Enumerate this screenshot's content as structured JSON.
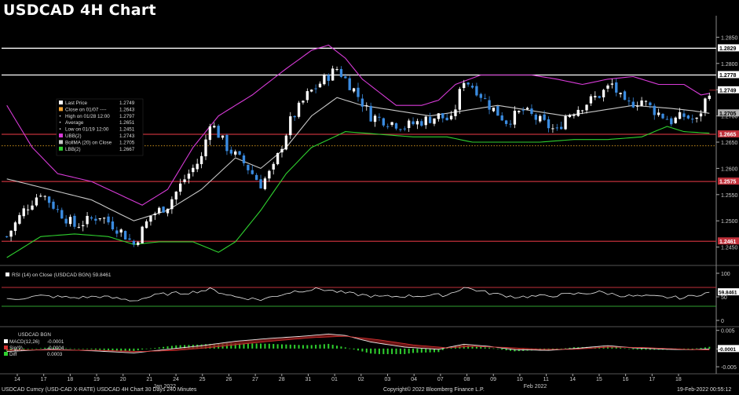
{
  "title": "USDCAD 4H Chart",
  "footer": {
    "left": "USDCAD Curncy (USD-CAD X-RATE) USDCAD 4H Chart 30 Days 240 Minutes",
    "center": "Copyright© 2022 Bloomberg Finance L.P.",
    "right": "19-Feb-2022 00:55:12"
  },
  "colors": {
    "background": "#000000",
    "candle_up": "#ffffff",
    "candle_down": "#3a8be0",
    "ubb": "#d83bd8",
    "lbb": "#2fd12f",
    "bollma": "#c8c8c8",
    "resistance_white": "#ffffff",
    "support_red": "#c0303a",
    "close_dotted": "#e0a020"
  },
  "legend": [
    {
      "label": "Last Price",
      "value": "1.2749",
      "swatch": "#ffffff"
    },
    {
      "label": "Close on 01/07  ----",
      "value": "1.2643",
      "swatch": "#f0a030"
    },
    {
      "label": "High on 01/28 12:00",
      "value": "1.2797",
      "swatch": "none"
    },
    {
      "label": "Average",
      "value": "1.2651",
      "swatch": "none"
    },
    {
      "label": "Low on 01/19 12:00",
      "value": "1.2451",
      "swatch": "none"
    },
    {
      "label": "UBB(2)",
      "value": "1.2743",
      "swatch": "#d83bd8"
    },
    {
      "label": "BollMA (20)  on Close",
      "value": "1.2705",
      "swatch": "#c8c8c8"
    },
    {
      "label": "LBB(2)",
      "value": "1.2667",
      "swatch": "#2fd12f"
    }
  ],
  "chart_data": [
    {
      "type": "candlestick",
      "title": "USDCAD 4H Chart",
      "ylim": [
        1.2418,
        1.2885
      ],
      "y_ticks": [
        "1.2850",
        "1.2800",
        "1.2750",
        "1.2700",
        "1.2650",
        "1.2600",
        "1.2550",
        "1.2500",
        "1.2450"
      ],
      "y_tick_values": [
        1.285,
        1.28,
        1.275,
        1.27,
        1.265,
        1.26,
        1.255,
        1.25,
        1.245
      ],
      "x_labels": [
        "14",
        "17",
        "18",
        "19",
        "20",
        "21",
        "24",
        "25",
        "26",
        "27",
        "28",
        "31",
        "01",
        "02",
        "03",
        "04",
        "07",
        "08",
        "09",
        "10",
        "11",
        "14",
        "15",
        "16",
        "17",
        "18"
      ],
      "x_month_labels": [
        {
          "after_index": 5,
          "label": "Jan 2022"
        },
        {
          "after_index": 19,
          "label": "Feb 2022"
        }
      ],
      "horizontal_lines": [
        {
          "value": 1.2829,
          "label": "1.2829",
          "color": "#ffffff"
        },
        {
          "value": 1.2778,
          "label": "1.2778",
          "color": "#ffffff"
        },
        {
          "value": 1.2665,
          "label": "1.2665",
          "color": "#c0303a"
        },
        {
          "value": 1.2575,
          "label": "1.2575",
          "color": "#c0303a"
        },
        {
          "value": 1.2461,
          "label": "1.2461",
          "color": "#c0303a"
        }
      ],
      "close_line": {
        "value": 1.2643
      },
      "price_tags": [
        {
          "value": 1.2749,
          "label": "1.2749"
        },
        {
          "value": 1.2705,
          "label": "1.2705"
        }
      ],
      "close_anchors": [
        [
          0,
          1.247
        ],
        [
          4,
          1.252
        ],
        [
          8,
          1.2555
        ],
        [
          12,
          1.252
        ],
        [
          16,
          1.249
        ],
        [
          22,
          1.251
        ],
        [
          27,
          1.248
        ],
        [
          30,
          1.2455
        ],
        [
          34,
          1.251
        ],
        [
          38,
          1.253
        ],
        [
          42,
          1.258
        ],
        [
          46,
          1.262
        ],
        [
          48,
          1.269
        ],
        [
          52,
          1.264
        ],
        [
          56,
          1.261
        ],
        [
          60,
          1.257
        ],
        [
          63,
          1.26
        ],
        [
          67,
          1.269
        ],
        [
          71,
          1.274
        ],
        [
          75,
          1.277
        ],
        [
          78,
          1.279
        ],
        [
          82,
          1.275
        ],
        [
          86,
          1.27
        ],
        [
          90,
          1.269
        ],
        [
          94,
          1.268
        ],
        [
          98,
          1.269
        ],
        [
          102,
          1.27
        ],
        [
          105,
          1.269
        ],
        [
          108,
          1.277
        ],
        [
          111,
          1.275
        ],
        [
          114,
          1.272
        ],
        [
          118,
          1.269
        ],
        [
          122,
          1.271
        ],
        [
          126,
          1.269
        ],
        [
          130,
          1.267
        ],
        [
          132,
          1.27
        ],
        [
          136,
          1.272
        ],
        [
          140,
          1.274
        ],
        [
          143,
          1.276
        ],
        [
          146,
          1.272
        ],
        [
          150,
          1.273
        ],
        [
          153,
          1.271
        ],
        [
          157,
          1.269
        ],
        [
          160,
          1.27
        ],
        [
          163,
          1.269
        ],
        [
          166,
          1.2749
        ]
      ],
      "bb_anchors": {
        "upper": [
          [
            0,
            1.272
          ],
          [
            6,
            1.264
          ],
          [
            12,
            1.259
          ],
          [
            20,
            1.2575
          ],
          [
            28,
            1.2545
          ],
          [
            32,
            1.253
          ],
          [
            38,
            1.256
          ],
          [
            44,
            1.264
          ],
          [
            50,
            1.27
          ],
          [
            58,
            1.274
          ],
          [
            66,
            1.279
          ],
          [
            72,
            1.2825
          ],
          [
            76,
            1.2835
          ],
          [
            80,
            1.281
          ],
          [
            84,
            1.277
          ],
          [
            92,
            1.272
          ],
          [
            98,
            1.272
          ],
          [
            102,
            1.273
          ],
          [
            106,
            1.276
          ],
          [
            112,
            1.2778
          ],
          [
            124,
            1.2778
          ],
          [
            130,
            1.277
          ],
          [
            136,
            1.276
          ],
          [
            142,
            1.277
          ],
          [
            148,
            1.2775
          ],
          [
            154,
            1.276
          ],
          [
            160,
            1.276
          ],
          [
            164,
            1.274
          ],
          [
            166,
            1.2743
          ]
        ],
        "middle": [
          [
            0,
            1.258
          ],
          [
            10,
            1.256
          ],
          [
            20,
            1.254
          ],
          [
            30,
            1.25
          ],
          [
            38,
            1.252
          ],
          [
            46,
            1.256
          ],
          [
            54,
            1.262
          ],
          [
            60,
            1.26
          ],
          [
            66,
            1.264
          ],
          [
            72,
            1.27
          ],
          [
            78,
            1.2735
          ],
          [
            84,
            1.272
          ],
          [
            92,
            1.271
          ],
          [
            100,
            1.27
          ],
          [
            108,
            1.271
          ],
          [
            116,
            1.272
          ],
          [
            124,
            1.271
          ],
          [
            132,
            1.27
          ],
          [
            140,
            1.271
          ],
          [
            148,
            1.272
          ],
          [
            156,
            1.2715
          ],
          [
            162,
            1.271
          ],
          [
            166,
            1.2705
          ]
        ],
        "lower": [
          [
            0,
            1.243
          ],
          [
            8,
            1.247
          ],
          [
            16,
            1.2475
          ],
          [
            24,
            1.247
          ],
          [
            30,
            1.2455
          ],
          [
            36,
            1.246
          ],
          [
            44,
            1.246
          ],
          [
            50,
            1.244
          ],
          [
            54,
            1.246
          ],
          [
            60,
            1.252
          ],
          [
            66,
            1.259
          ],
          [
            72,
            1.264
          ],
          [
            80,
            1.267
          ],
          [
            88,
            1.2665
          ],
          [
            96,
            1.266
          ],
          [
            104,
            1.266
          ],
          [
            110,
            1.265
          ],
          [
            118,
            1.265
          ],
          [
            126,
            1.265
          ],
          [
            134,
            1.2655
          ],
          [
            142,
            1.2655
          ],
          [
            150,
            1.266
          ],
          [
            156,
            1.268
          ],
          [
            160,
            1.267
          ],
          [
            166,
            1.2667
          ]
        ]
      },
      "bar_count": 167
    },
    {
      "type": "line",
      "title": "RSI (14)  on Close (USDCAD BGN) 59.8461",
      "ylim": [
        -10,
        110
      ],
      "y_ticks": [
        "100",
        "50",
        "0"
      ],
      "y_tick_values": [
        100,
        50,
        0
      ],
      "levels": [
        70,
        30
      ],
      "last_value_label": "59.8461",
      "anchors": [
        [
          0,
          44
        ],
        [
          8,
          52
        ],
        [
          16,
          48
        ],
        [
          22,
          51
        ],
        [
          30,
          42
        ],
        [
          36,
          55
        ],
        [
          44,
          60
        ],
        [
          48,
          66
        ],
        [
          54,
          50
        ],
        [
          60,
          44
        ],
        [
          68,
          62
        ],
        [
          74,
          67
        ],
        [
          80,
          58
        ],
        [
          88,
          50
        ],
        [
          96,
          52
        ],
        [
          104,
          54
        ],
        [
          108,
          70
        ],
        [
          114,
          58
        ],
        [
          120,
          50
        ],
        [
          128,
          52
        ],
        [
          134,
          56
        ],
        [
          140,
          60
        ],
        [
          146,
          52
        ],
        [
          154,
          50
        ],
        [
          160,
          48
        ],
        [
          166,
          59.8461
        ]
      ]
    },
    {
      "type": "bar",
      "title": "USDCAD BGN",
      "ylim": [
        -0.0065,
        0.0058
      ],
      "y_ticks": [
        "0.005",
        "-0.0001",
        "-0.005"
      ],
      "y_tick_values": [
        0.005,
        -0.0001,
        -0.005
      ],
      "series": [
        {
          "name": "MACD(12,26)",
          "value": "-0.0001"
        },
        {
          "name": "Sig(9)",
          "value": "-0.0004"
        },
        {
          "name": "Diff",
          "value": "0.0003"
        }
      ],
      "macd_anchors": [
        [
          0,
          -0.0008
        ],
        [
          10,
          -0.0002
        ],
        [
          20,
          -0.0006
        ],
        [
          30,
          -0.0012
        ],
        [
          38,
          -0.0002
        ],
        [
          46,
          0.0008
        ],
        [
          54,
          0.002
        ],
        [
          62,
          0.0028
        ],
        [
          70,
          0.0034
        ],
        [
          76,
          0.004
        ],
        [
          80,
          0.0036
        ],
        [
          86,
          0.0018
        ],
        [
          94,
          0.0004
        ],
        [
          102,
          -0.0002
        ],
        [
          108,
          0.0012
        ],
        [
          114,
          0.0006
        ],
        [
          120,
          -0.0003
        ],
        [
          128,
          -0.0005
        ],
        [
          136,
          0.0002
        ],
        [
          142,
          0.0008
        ],
        [
          148,
          0.0002
        ],
        [
          156,
          -0.0002
        ],
        [
          162,
          -0.0003
        ],
        [
          166,
          -0.0001
        ]
      ],
      "signal_anchors": [
        [
          0,
          -0.0004
        ],
        [
          12,
          -0.0004
        ],
        [
          22,
          -0.0005
        ],
        [
          32,
          -0.0008
        ],
        [
          40,
          -0.0005
        ],
        [
          48,
          0.0003
        ],
        [
          56,
          0.0013
        ],
        [
          64,
          0.0022
        ],
        [
          72,
          0.003
        ],
        [
          80,
          0.0034
        ],
        [
          88,
          0.0024
        ],
        [
          96,
          0.001
        ],
        [
          104,
          0.0002
        ],
        [
          110,
          0.0006
        ],
        [
          118,
          0.0003
        ],
        [
          126,
          -0.0002
        ],
        [
          134,
          -0.0002
        ],
        [
          142,
          0.0004
        ],
        [
          150,
          0.0003
        ],
        [
          158,
          -0.0001
        ],
        [
          166,
          -0.0004
        ]
      ]
    }
  ]
}
